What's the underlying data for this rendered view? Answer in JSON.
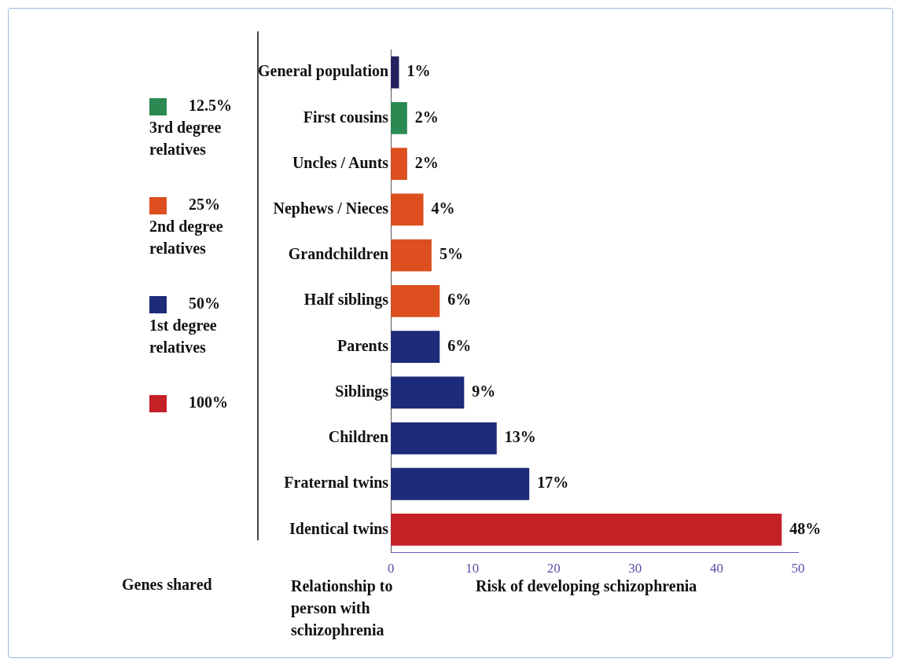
{
  "chart_data": {
    "type": "bar",
    "orientation": "horizontal",
    "stacked": true,
    "categories": [
      "General population",
      "First cousins",
      "Uncles / Aunts",
      "Nephews / Nieces",
      "Grandchildren",
      "Half siblings",
      "Parents",
      "Siblings",
      "Children",
      "Fraternal twins",
      "Identical twins"
    ],
    "series": [
      {
        "color": "#24215e",
        "values": [
          1,
          null,
          null,
          null,
          null,
          null,
          null,
          null,
          null,
          null,
          null
        ],
        "value_labels": [
          "1%",
          null,
          null,
          null,
          null,
          null,
          null,
          null,
          null,
          null,
          null
        ]
      },
      {
        "name": "12.5% 3rd degree relatives",
        "color": "#2a8a52",
        "values": [
          null,
          2,
          null,
          null,
          null,
          null,
          null,
          null,
          null,
          null,
          null
        ],
        "value_labels": [
          null,
          "2%",
          null,
          null,
          null,
          null,
          null,
          null,
          null,
          null,
          null
        ]
      },
      {
        "name": "25% 2nd degree relatives",
        "color": "#dd4f1f",
        "values": [
          null,
          null,
          2,
          4,
          5,
          6,
          null,
          null,
          null,
          null,
          null
        ],
        "value_labels": [
          null,
          null,
          "2%",
          "4%",
          "5%",
          "6%",
          null,
          null,
          null,
          null,
          null
        ]
      },
      {
        "name": "50% 1st degree relatives",
        "color": "#1e2b7a",
        "values": [
          null,
          null,
          null,
          null,
          null,
          null,
          6,
          9,
          13,
          17,
          null
        ],
        "value_labels": [
          null,
          null,
          null,
          null,
          null,
          null,
          "6%",
          "9%",
          "13%",
          "17%",
          null
        ]
      },
      {
        "name": "100%",
        "color": "#c62027",
        "values": [
          null,
          null,
          null,
          null,
          null,
          null,
          null,
          null,
          null,
          null,
          48
        ],
        "value_labels": [
          null,
          null,
          null,
          null,
          null,
          null,
          null,
          null,
          null,
          null,
          "48%"
        ]
      }
    ],
    "xlim": [
      0,
      50
    ],
    "xticks": [
      0,
      10,
      20,
      30,
      40,
      50
    ],
    "xlabel": "Risk of developing schizophrenia",
    "ylabel": "Relationship to person with schizophrenia",
    "legend_title": "Genes shared",
    "legend": "left",
    "grid": false
  }
}
